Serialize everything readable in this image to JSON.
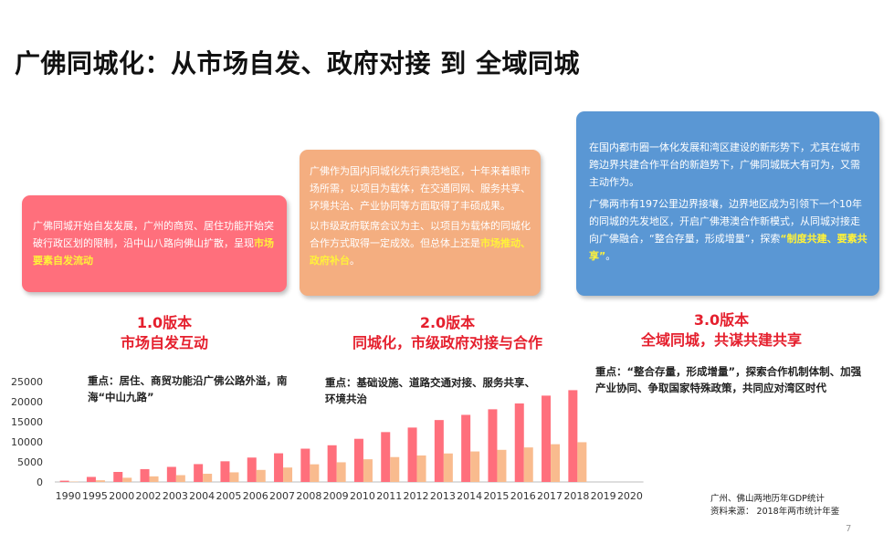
{
  "title": "广佛同城化：从市场自发、政府对接  到  全域同城",
  "boxes": {
    "b1": {
      "text": "广佛同城开始自发发展，广州的商贸、居住功能开始突破行政区划的限制，沿中山八路向佛山扩散，呈现",
      "highlight": "市场要素自发流动"
    },
    "b2": {
      "p1": "广佛作为国内同城化先行典范地区，十年来着眼市场所需，以项目为载体，在交通同网、服务共享、环境共治、产业协同等方面取得了丰硕成果。",
      "p2": "以市级政府联席会议为主、以项目为载体的同城化合作方式取得一定成效。但总体上还是",
      "p2_highlight": "市场推动、政府补台",
      "p2_end": "。"
    },
    "b3": {
      "p1": "在国内都市圈一体化发展和湾区建设的新形势下，尤其在城市跨边界共建合作平台的新趋势下，广佛同城既大有可为，又需主动作为。",
      "p2": "广佛两市有197公里边界接壤，边界地区成为引领下一个10年的同城的先发地区，开启广佛港澳合作新模式，从同城对接走向广佛融合，“整合存量，形成增量”，探索",
      "p2_highlight": "“制度共建、要素共享”",
      "p2_end": "。"
    }
  },
  "versions": {
    "v1": {
      "label": "1.0版本",
      "subtitle": "市场自发互动"
    },
    "v2": {
      "label": "2.0版本",
      "subtitle": "同城化，市级政府对接与合作"
    },
    "v3": {
      "label": "3.0版本",
      "subtitle": "全域同城，共谋共建共享"
    }
  },
  "focus": {
    "f1": "重点：居住、商贸功能沿广佛公路外溢，南海“中山九路”",
    "f2": "重点：基础设施、道路交通对接、服务共享、环境共治",
    "f3": "重点：“整合存量，形成增量”，探索合作机制体制、加强产业协同、争取国家特殊政策，共同应对湾区时代"
  },
  "source": {
    "line1": "广州、佛山两地历年GDP统计",
    "line2": "资料来源：  2018年两市统计年鉴"
  },
  "page_number": "7",
  "colors": {
    "guangzhou": "#ff6f7c",
    "foshan": "#f9bb8e",
    "accent": "#e5202e"
  },
  "chart_data": {
    "type": "bar",
    "categories": [
      "1990",
      "1995",
      "2000",
      "2002",
      "2003",
      "2004",
      "2005",
      "2006",
      "2007",
      "2008",
      "2009",
      "2010",
      "2011",
      "2012",
      "2013",
      "2014",
      "2015",
      "2016",
      "2017",
      "2018",
      "2019",
      "2020"
    ],
    "series": [
      {
        "values": [
          320,
          1260,
          2500,
          3200,
          3760,
          4450,
          5150,
          6080,
          7140,
          8290,
          9140,
          10750,
          12420,
          13550,
          15420,
          16710,
          18100,
          19550,
          21500,
          22860,
          null,
          null
        ]
      },
      {
        "values": [
          100,
          420,
          1050,
          1400,
          1700,
          2050,
          2400,
          3000,
          3600,
          4400,
          4900,
          5650,
          6200,
          6600,
          7100,
          7600,
          8000,
          8600,
          9400,
          9900,
          null,
          null
        ]
      }
    ],
    "yticks": [
      0,
      5000,
      10000,
      15000,
      20000,
      25000
    ],
    "ylim": [
      0,
      25000
    ],
    "grid": false
  }
}
